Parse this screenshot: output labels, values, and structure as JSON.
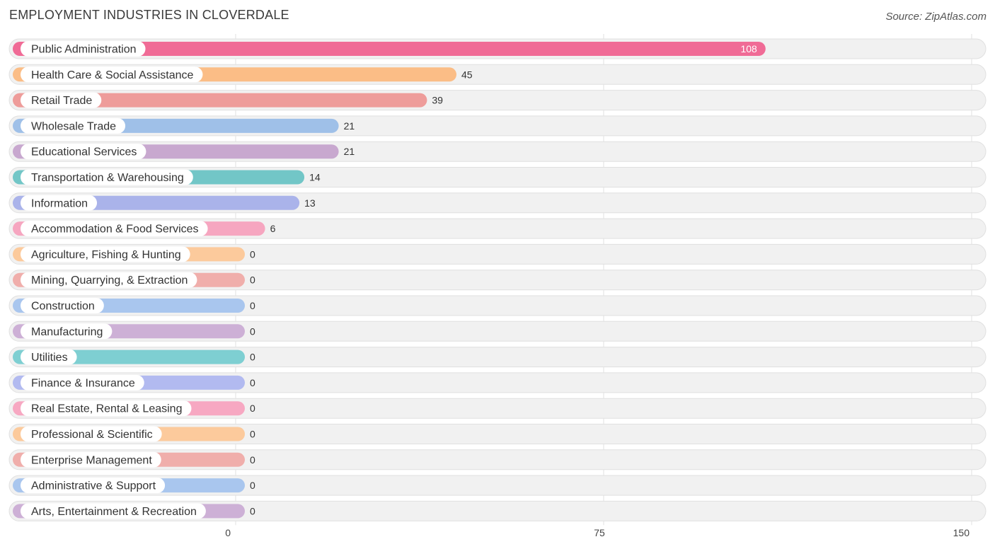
{
  "header": {
    "title": "EMPLOYMENT INDUSTRIES IN CLOVERDALE",
    "source": "Source: ZipAtlas.com"
  },
  "chart_data": {
    "type": "bar",
    "orientation": "horizontal",
    "title": "EMPLOYMENT INDUSTRIES IN CLOVERDALE",
    "categories": [
      "Public Administration",
      "Health Care & Social Assistance",
      "Retail Trade",
      "Wholesale Trade",
      "Educational Services",
      "Transportation & Warehousing",
      "Information",
      "Accommodation & Food Services",
      "Agriculture, Fishing & Hunting",
      "Mining, Quarrying, & Extraction",
      "Construction",
      "Manufacturing",
      "Utilities",
      "Finance & Insurance",
      "Real Estate, Rental & Leasing",
      "Professional & Scientific",
      "Enterprise Management",
      "Administrative & Support",
      "Arts, Entertainment & Recreation"
    ],
    "values": [
      108,
      45,
      39,
      21,
      21,
      14,
      13,
      6,
      0,
      0,
      0,
      0,
      0,
      0,
      0,
      0,
      0,
      0,
      0
    ],
    "colors": [
      "#f06b96",
      "#fbbd86",
      "#ee9c9a",
      "#9fc0e8",
      "#c8a8cf",
      "#72c6c7",
      "#aab3ea",
      "#f6a6c0",
      "#fcca9c",
      "#f0aeab",
      "#a9c6ee",
      "#cdb0d6",
      "#7ecfd2",
      "#b2baf0",
      "#f7a8c2",
      "#fcca9c",
      "#f0aeab",
      "#a9c6ee",
      "#cdb0d6"
    ],
    "xlim": [
      0,
      150
    ],
    "xticks": [
      0,
      75,
      150
    ],
    "grid": true
  }
}
